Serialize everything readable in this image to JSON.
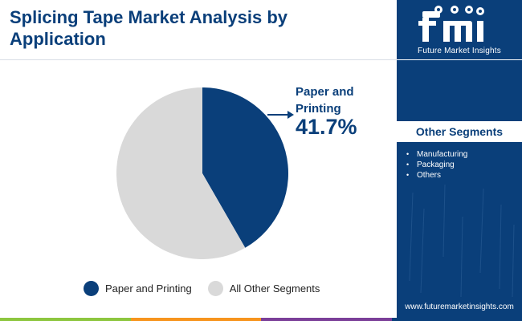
{
  "title": "Splicing Tape Market Analysis by Application",
  "chart_data": {
    "type": "pie",
    "categories": [
      "Paper and Printing",
      "All Other Segments"
    ],
    "values": [
      41.7,
      58.3
    ],
    "unit": "%",
    "colors": [
      "#0a3f7a",
      "#d9d9d9"
    ],
    "legend_position": "bottom",
    "annotation": {
      "label": "Paper and Printing",
      "value_text": "41.7%"
    }
  },
  "legend": [
    {
      "label": "Paper and Printing",
      "color": "#0a3f7a"
    },
    {
      "label": "All Other Segments",
      "color": "#d9d9d9"
    }
  ],
  "sidebar": {
    "logo_caption": "Future Market Insights",
    "logo_text": "fmi",
    "segments_heading": "Other Segments",
    "segments": [
      "Manufacturing",
      "Packaging",
      "Others"
    ],
    "website": "www.futuremarketinsights.com",
    "background": "#0a3f7a"
  },
  "bottom_bar_colors": [
    "#8dc63f",
    "#f7941d",
    "#7b3f98",
    "#0a3f7a"
  ]
}
